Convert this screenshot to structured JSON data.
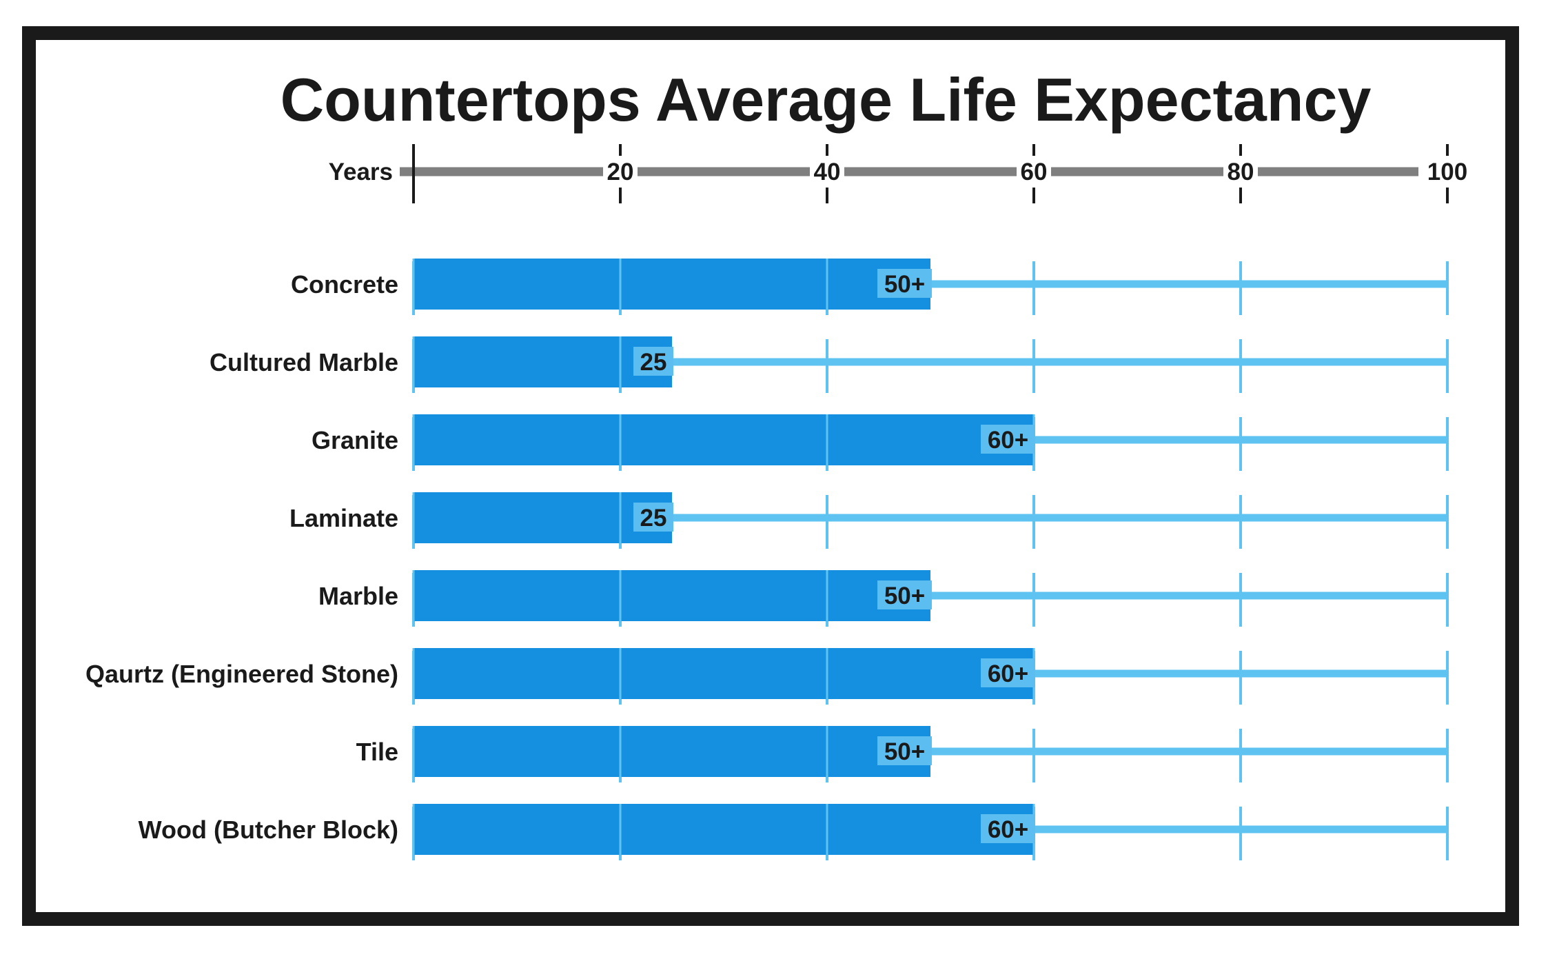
{
  "chart_data": {
    "type": "bar",
    "orientation": "horizontal",
    "title": "Countertops Average Life Expectancy",
    "xlabel": "Years",
    "xlim": [
      0,
      100
    ],
    "x_ticks": [
      {
        "value": 20,
        "label": "20"
      },
      {
        "value": 40,
        "label": "40"
      },
      {
        "value": 60,
        "label": "60"
      },
      {
        "value": 80,
        "label": "80"
      },
      {
        "value": 100,
        "label": "100"
      }
    ],
    "categories": [
      "Concrete",
      "Cultured Marble",
      "Granite",
      "Laminate",
      "Marble",
      "Qaurtz (Engineered Stone)",
      "Tile",
      "Wood (Butcher Block)"
    ],
    "values": [
      50,
      25,
      60,
      25,
      50,
      60,
      50,
      60
    ],
    "value_labels": [
      "50+",
      "25",
      "60+",
      "25",
      "50+",
      "60+",
      "50+",
      "60+"
    ],
    "grid": true,
    "colors": {
      "bar": "#1590e0",
      "track": "#5fc3f2",
      "label_box": "#5cbdf0",
      "axis": "#7f7f7f",
      "frame": "#1a1a1a",
      "text": "#1a1a1a"
    }
  }
}
